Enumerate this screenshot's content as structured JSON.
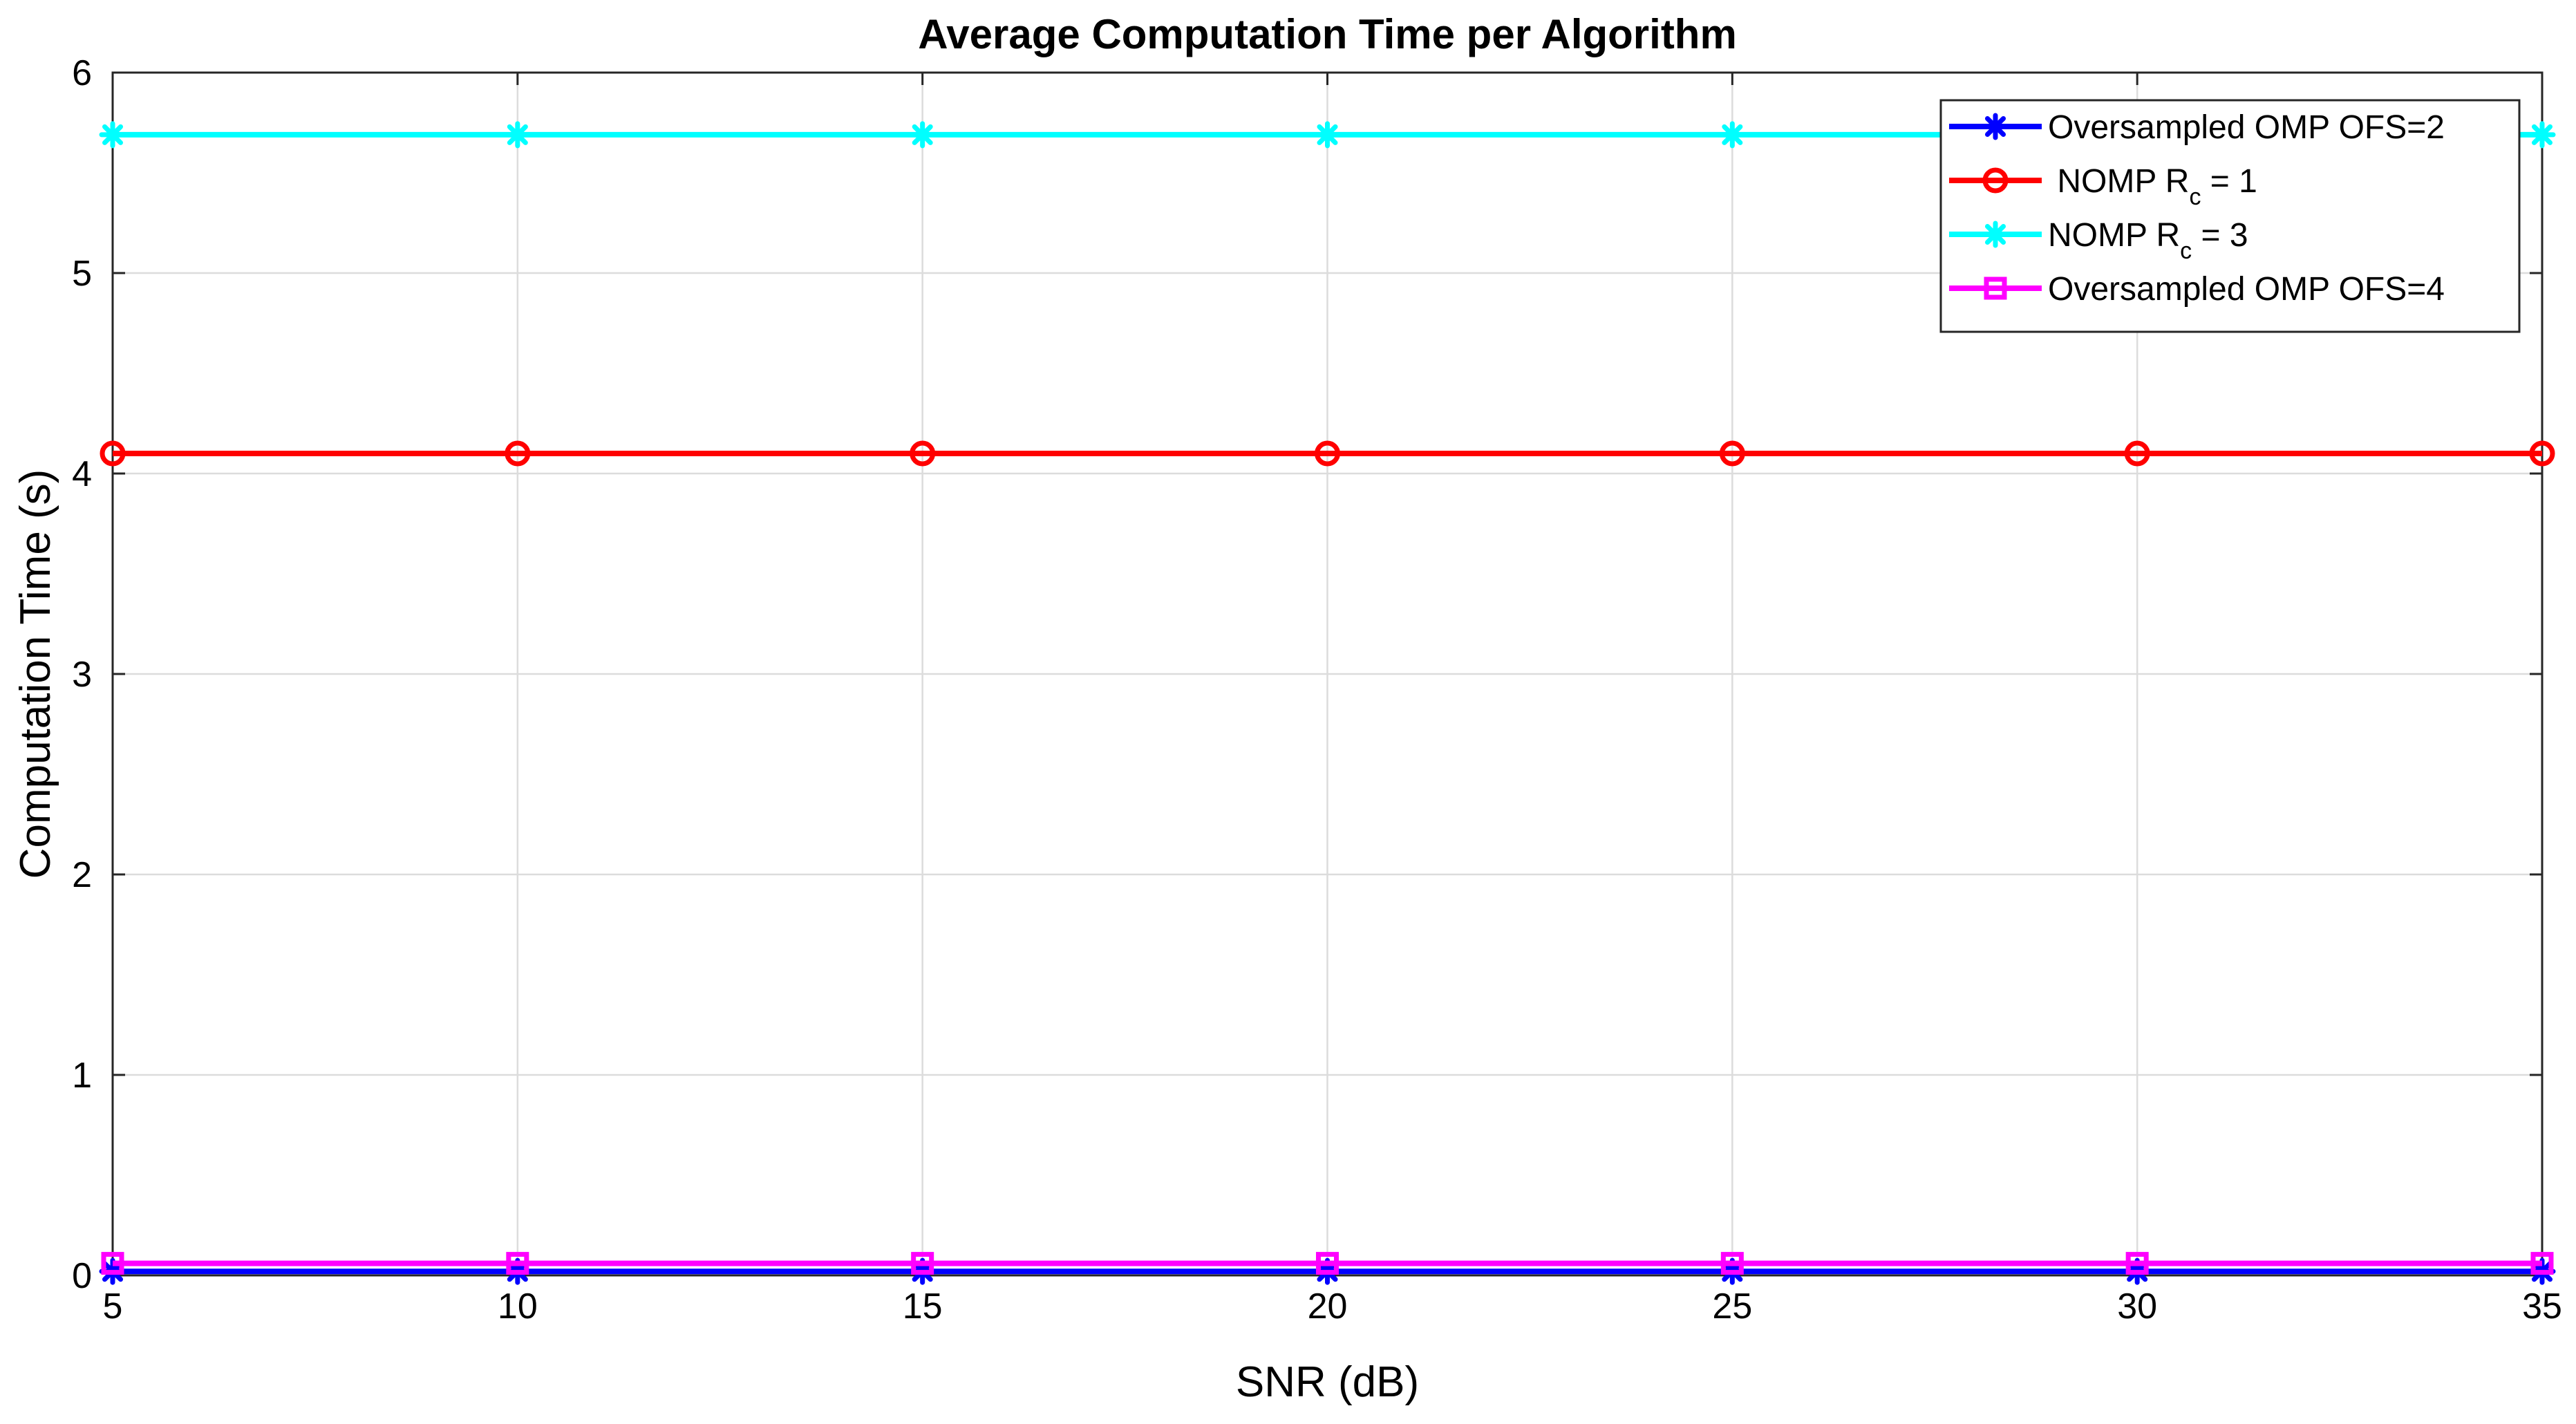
{
  "chart_data": {
    "type": "line",
    "title": "Average Computation Time per Algorithm",
    "xlabel": "SNR (dB)",
    "ylabel": "Computation Time (s)",
    "xlim": [
      5,
      35
    ],
    "ylim": [
      0,
      6
    ],
    "xticks": [
      5,
      10,
      15,
      20,
      25,
      30,
      35
    ],
    "yticks": [
      0,
      1,
      2,
      3,
      4,
      5,
      6
    ],
    "grid": true,
    "legend_position": "top-right",
    "x": [
      5,
      10,
      15,
      20,
      25,
      30,
      35
    ],
    "series": [
      {
        "legend_main": "Oversampled OMP OFS=2",
        "legend_sub": "",
        "legend_tail": "",
        "color": "#0000ff",
        "marker": "asterisk",
        "values": [
          0.02,
          0.02,
          0.02,
          0.02,
          0.02,
          0.02,
          0.02
        ]
      },
      {
        "legend_main": " NOMP R",
        "legend_sub": "c",
        "legend_tail": " = 1",
        "color": "#ff0000",
        "marker": "circle",
        "values": [
          4.1,
          4.1,
          4.1,
          4.1,
          4.1,
          4.1,
          4.1
        ]
      },
      {
        "legend_main": "NOMP R",
        "legend_sub": "c",
        "legend_tail": " = 3",
        "color": "#00ffff",
        "marker": "asterisk",
        "values": [
          5.69,
          5.69,
          5.69,
          5.69,
          5.69,
          5.69,
          5.69
        ]
      },
      {
        "legend_main": "Oversampled OMP OFS=4",
        "legend_sub": "",
        "legend_tail": "",
        "color": "#ff00ff",
        "marker": "square",
        "values": [
          0.06,
          0.06,
          0.06,
          0.06,
          0.06,
          0.06,
          0.06
        ]
      }
    ]
  }
}
